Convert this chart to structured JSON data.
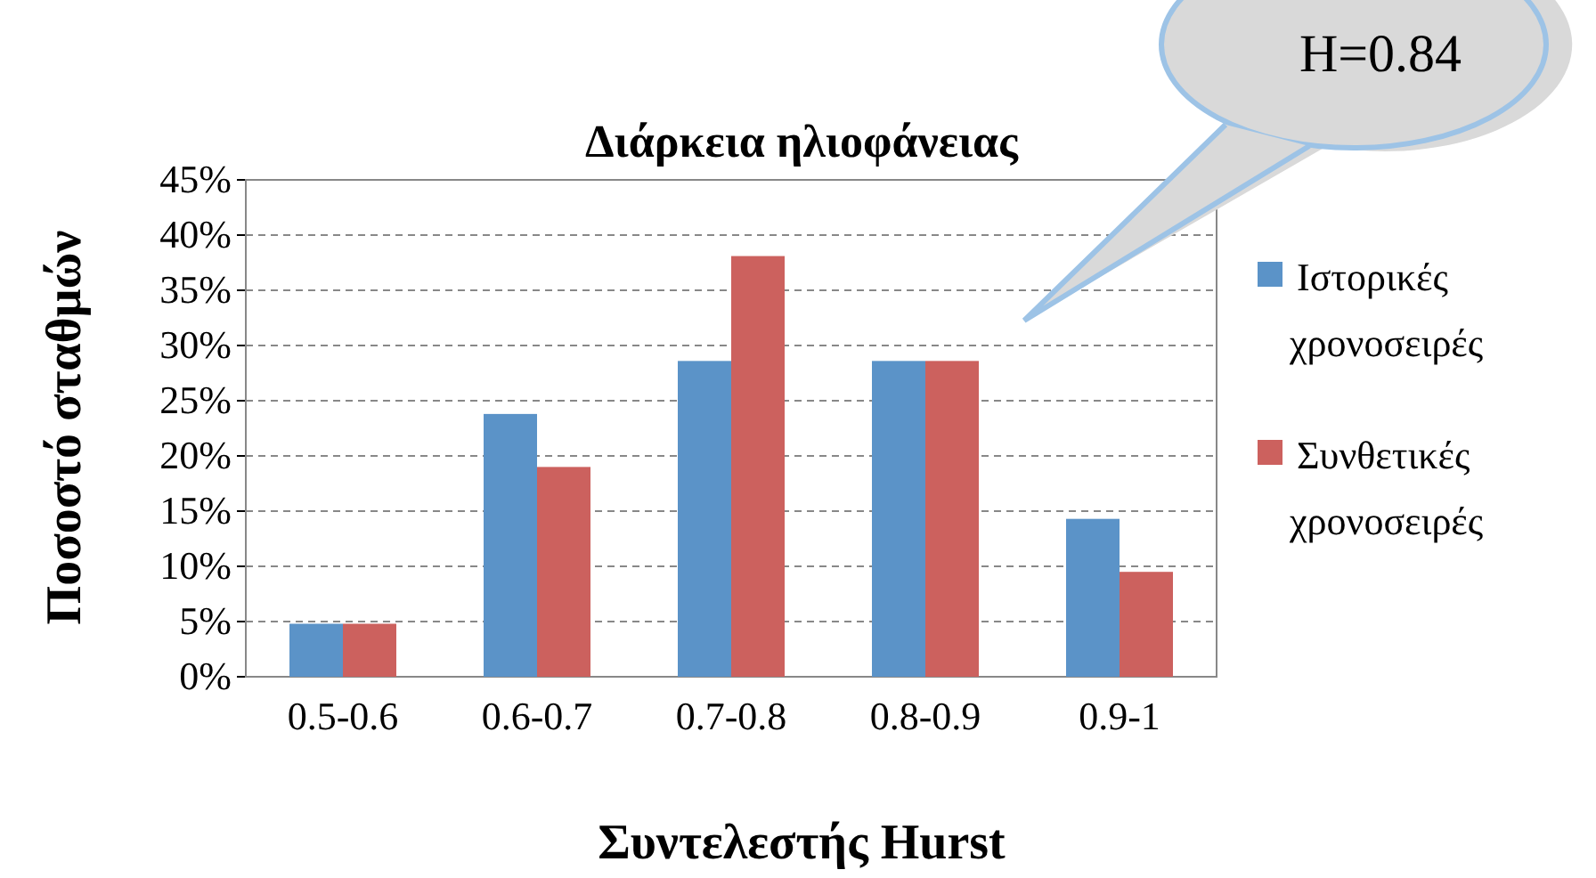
{
  "chart_data": {
    "type": "bar",
    "title": "Διάρκεια ηλιοφάνειας",
    "xlabel": "Συντελεστής Hurst",
    "ylabel": "Ποσοστό σταθμών",
    "categories": [
      "0.5-0.6",
      "0.6-0.7",
      "0.7-0.8",
      "0.8-0.9",
      "0.9-1"
    ],
    "series": [
      {
        "name": "Ιστορικές χρονοσειρές",
        "color": "#5b93c8",
        "values": [
          4.8,
          23.8,
          28.6,
          28.6,
          14.3
        ]
      },
      {
        "name": "Συνθετικές χρονοσειρές",
        "color": "#cc615e",
        "values": [
          4.8,
          19.0,
          38.1,
          28.6,
          9.5
        ]
      }
    ],
    "ylim": [
      0,
      45
    ],
    "yticks": [
      {
        "value": 0,
        "label": "0%"
      },
      {
        "value": 5,
        "label": "5%"
      },
      {
        "value": 10,
        "label": "10%"
      },
      {
        "value": 15,
        "label": "15%"
      },
      {
        "value": 20,
        "label": "20%"
      },
      {
        "value": 25,
        "label": "25%"
      },
      {
        "value": 30,
        "label": "30%"
      },
      {
        "value": 35,
        "label": "35%"
      },
      {
        "value": 40,
        "label": "40%"
      },
      {
        "value": 45,
        "label": "45%"
      }
    ],
    "grid": "y",
    "legend": "right",
    "annotations": [
      "H=0.84"
    ]
  }
}
